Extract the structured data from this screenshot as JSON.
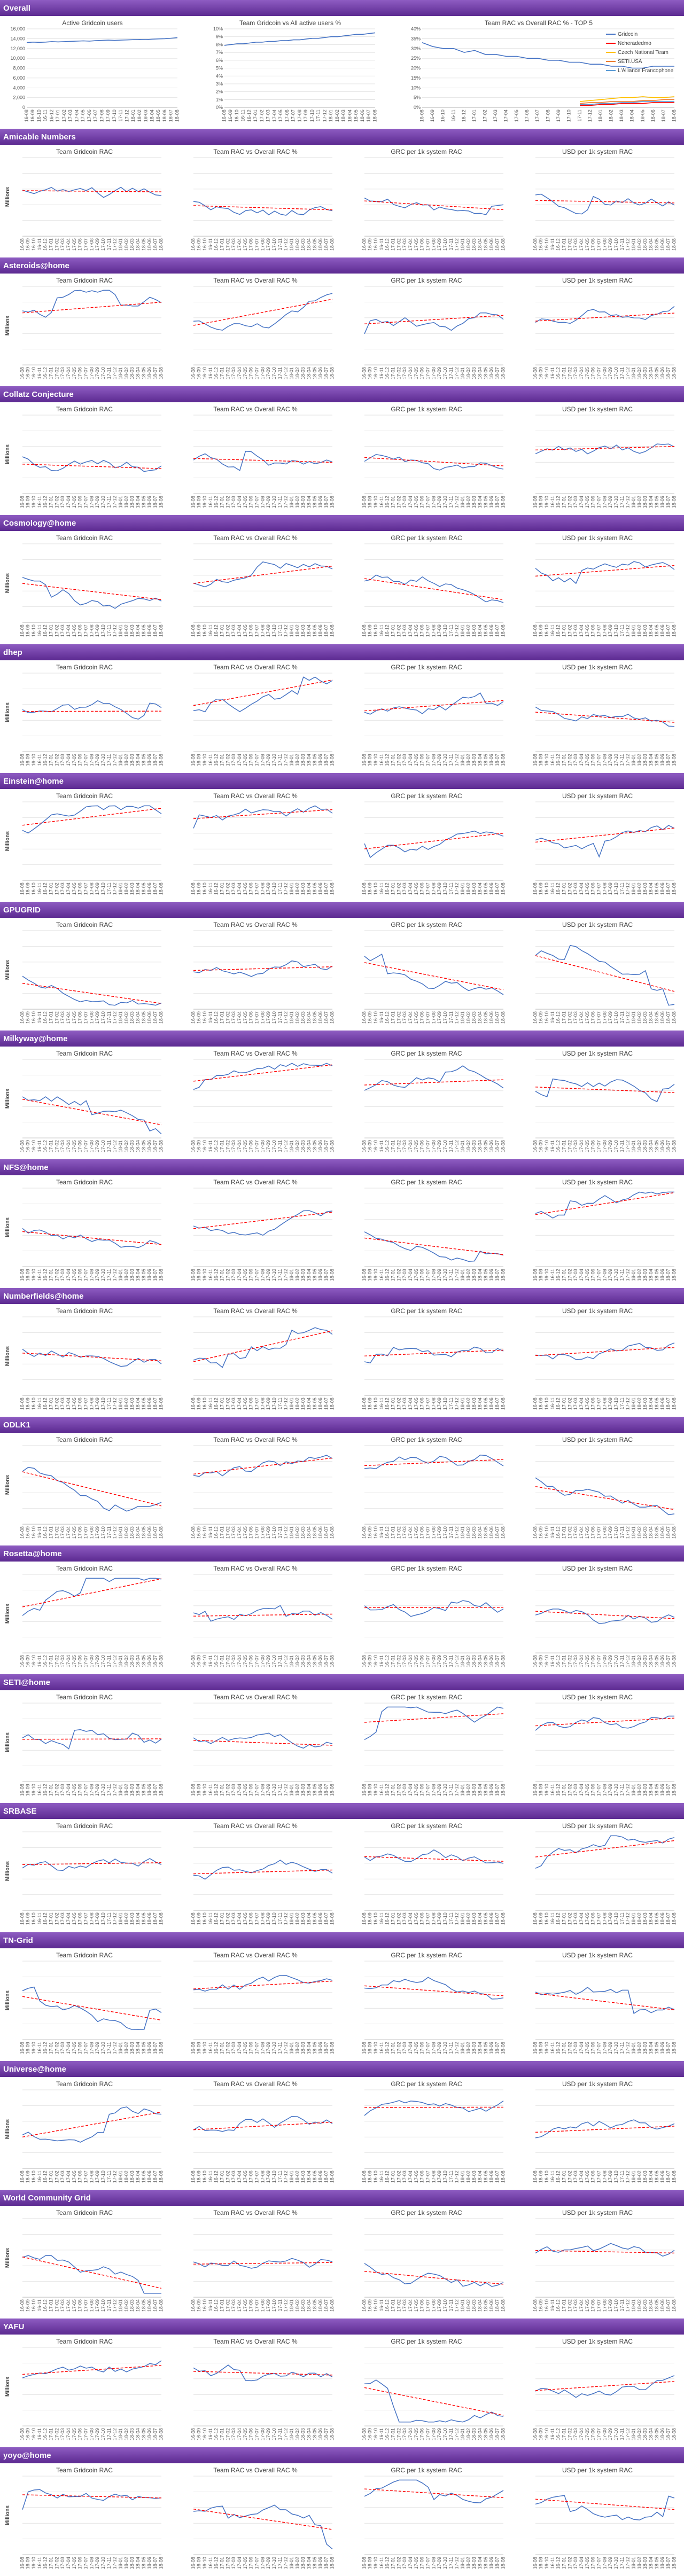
{
  "sections": [
    {
      "name": "Overall",
      "kind": "overall",
      "charts": [
        {
          "title": "Active Gridcoin users"
        },
        {
          "title": "Team Gridcoin vs All active users %"
        },
        {
          "title": "Team RAC vs Overall RAC % - TOP 5",
          "legend": [
            "Gridcoin",
            "Ncheradedmo",
            "Czech National Team",
            "SETI.USA",
            "L'Alliance Francophone"
          ]
        }
      ]
    },
    {
      "name": "Amicable Numbers"
    },
    {
      "name": "Asteroids@home"
    },
    {
      "name": "Collatz Conjecture"
    },
    {
      "name": "Cosmology@home"
    },
    {
      "name": "dhep"
    },
    {
      "name": "Einstein@home"
    },
    {
      "name": "GPUGRID"
    },
    {
      "name": "Milkyway@home"
    },
    {
      "name": "NFS@home"
    },
    {
      "name": "Numberfields@home"
    },
    {
      "name": "ODLK1"
    },
    {
      "name": "Rosetta@home"
    },
    {
      "name": "SETI@home"
    },
    {
      "name": "SRBASE"
    },
    {
      "name": "TN-Grid"
    },
    {
      "name": "Universe@home"
    },
    {
      "name": "World Community Grid"
    },
    {
      "name": "YAFU"
    },
    {
      "name": "yoyo@home"
    }
  ],
  "project_chart_titles": [
    "Team Gridcoin RAC",
    "Team RAC vs Overall RAC %",
    "GRC per 1k system RAC",
    "USD per 1k system RAC"
  ],
  "millions_label": "Millions",
  "colors": {
    "series": "#4472c4",
    "trend": "#ff0000",
    "banner_top": "#8e5cc2",
    "banner_bottom": "#5c2a91",
    "legend": [
      "#4472c4",
      "#ff0000",
      "#ffc000",
      "#ed7d31",
      "#5b9bd5"
    ]
  },
  "chart_data": [
    {
      "section": "Overall",
      "type": "line",
      "title": "Active Gridcoin users",
      "x": [
        "16-08",
        "16-09",
        "16-10",
        "16-11",
        "16-12",
        "17-01",
        "17-02",
        "17-03",
        "17-04",
        "17-05",
        "17-06",
        "17-07",
        "17-08",
        "17-09",
        "17-10",
        "17-11",
        "17-12",
        "18-01",
        "18-02",
        "18-03",
        "18-04",
        "18-05",
        "18-06",
        "18-07",
        "18-08"
      ],
      "ylim": [
        0,
        16000
      ],
      "yticks": [
        "0",
        "2,000",
        "4,000",
        "6,000",
        "8,000",
        "10,000",
        "12,000",
        "14,000",
        "16,000"
      ],
      "series": [
        {
          "values": [
            13200,
            13300,
            13250,
            13300,
            13400,
            13350,
            13400,
            13450,
            13500,
            13550,
            13500,
            13600,
            13650,
            13700,
            13650,
            13700,
            13750,
            13800,
            13850,
            13800,
            13900,
            13950,
            14000,
            14100,
            14200
          ]
        }
      ]
    },
    {
      "section": "Overall",
      "type": "line",
      "title": "Team Gridcoin vs All active users %",
      "x": [
        "16-08",
        "16-09",
        "16-10",
        "16-11",
        "16-12",
        "17-01",
        "17-02",
        "17-03",
        "17-04",
        "17-05",
        "17-06",
        "17-07",
        "17-08",
        "17-09",
        "17-10",
        "17-11",
        "17-12",
        "18-01",
        "18-02",
        "18-03",
        "18-04",
        "18-05",
        "18-06",
        "18-07",
        "18-08"
      ],
      "ylim": [
        0,
        10
      ],
      "yticks": [
        "0%",
        "1%",
        "2%",
        "3%",
        "4%",
        "5%",
        "6%",
        "7%",
        "8%",
        "9%",
        "10%"
      ],
      "series": [
        {
          "values": [
            7.9,
            8.0,
            8.1,
            8.1,
            8.2,
            8.3,
            8.3,
            8.4,
            8.4,
            8.5,
            8.5,
            8.6,
            8.6,
            8.7,
            8.8,
            8.8,
            8.9,
            9.0,
            9.0,
            9.1,
            9.2,
            9.3,
            9.3,
            9.4,
            9.5
          ]
        }
      ]
    },
    {
      "section": "Overall",
      "type": "line",
      "title": "Team RAC vs Overall RAC % - TOP 5",
      "x": [
        "16-08",
        "16-09",
        "16-10",
        "16-11",
        "16-12",
        "17-01",
        "17-02",
        "17-03",
        "17-04",
        "17-05",
        "17-06",
        "17-07",
        "17-08",
        "17-09",
        "17-10",
        "17-11",
        "17-12",
        "18-01",
        "18-02",
        "18-03",
        "18-04",
        "18-05",
        "18-06",
        "18-07",
        "18-08"
      ],
      "ylim": [
        0,
        40
      ],
      "yticks": [
        "0%",
        "5%",
        "10%",
        "15%",
        "20%",
        "25%",
        "30%",
        "35%",
        "40%"
      ],
      "series": [
        {
          "name": "Gridcoin",
          "values": [
            33,
            31,
            30,
            30,
            28,
            29,
            27,
            27,
            26,
            26,
            25,
            25,
            24,
            24,
            23,
            23,
            22,
            22,
            21,
            21,
            20,
            20,
            21,
            21,
            21
          ]
        },
        {
          "name": "Ncheradedmo",
          "values": [
            null,
            null,
            null,
            null,
            null,
            null,
            null,
            null,
            null,
            null,
            null,
            null,
            null,
            null,
            null,
            1,
            1,
            1.5,
            1.5,
            2,
            2,
            2,
            2.5,
            2.5,
            2.5
          ]
        },
        {
          "name": "Czech National Team",
          "values": [
            null,
            null,
            null,
            null,
            null,
            null,
            null,
            null,
            null,
            null,
            null,
            null,
            null,
            null,
            null,
            3,
            3.5,
            4,
            4.5,
            5,
            5,
            5.5,
            5,
            5,
            5.5
          ]
        },
        {
          "name": "SETI.USA",
          "values": [
            null,
            null,
            null,
            null,
            null,
            null,
            null,
            null,
            null,
            null,
            null,
            null,
            null,
            null,
            null,
            2,
            2.5,
            2.5,
            3,
            3,
            3,
            3.5,
            3.5,
            4,
            4
          ]
        },
        {
          "name": "L'Alliance Francophone",
          "values": [
            null,
            null,
            null,
            null,
            null,
            null,
            null,
            null,
            null,
            null,
            null,
            null,
            null,
            null,
            null,
            1.5,
            1.5,
            2,
            2,
            2.5,
            2.5,
            3,
            3,
            3,
            3
          ]
        }
      ]
    }
  ]
}
